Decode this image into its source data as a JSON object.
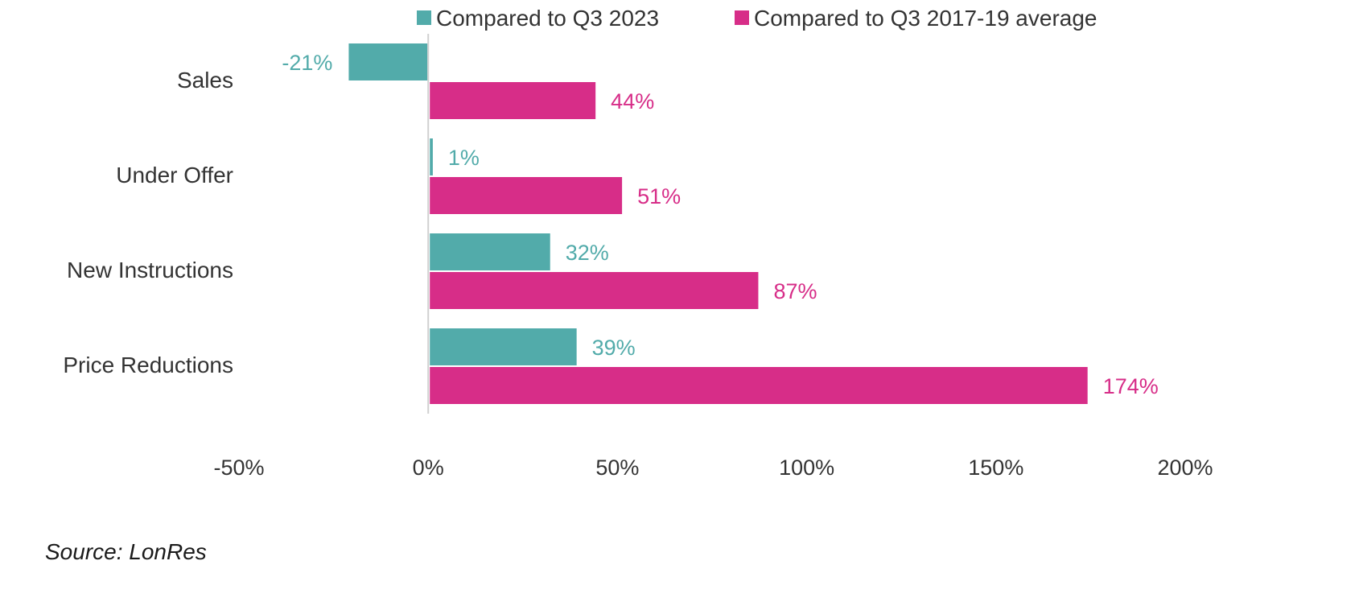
{
  "chart_data": {
    "type": "bar",
    "orientation": "horizontal",
    "categories": [
      "Sales",
      "Under Offer",
      "New Instructions",
      "Price Reductions"
    ],
    "series": [
      {
        "name": "Compared to Q3 2023",
        "color": "#52ABAA",
        "values": [
          -21,
          1,
          32,
          39
        ],
        "labels": [
          "-21%",
          "1%",
          "32%",
          "39%"
        ]
      },
      {
        "name": "Compared to Q3 2017-19 average",
        "color": "#D72D88",
        "values": [
          44,
          51,
          87,
          174
        ],
        "labels": [
          "44%",
          "51%",
          "87%",
          "174%"
        ]
      }
    ],
    "xlim": [
      -50,
      200
    ],
    "xticks": [
      -50,
      0,
      50,
      100,
      150,
      200
    ],
    "xtick_labels": [
      "-50%",
      "0%",
      "50%",
      "100%",
      "150%",
      "200%"
    ],
    "grid": false,
    "legend_position": "top"
  },
  "source": "Source: LonRes"
}
